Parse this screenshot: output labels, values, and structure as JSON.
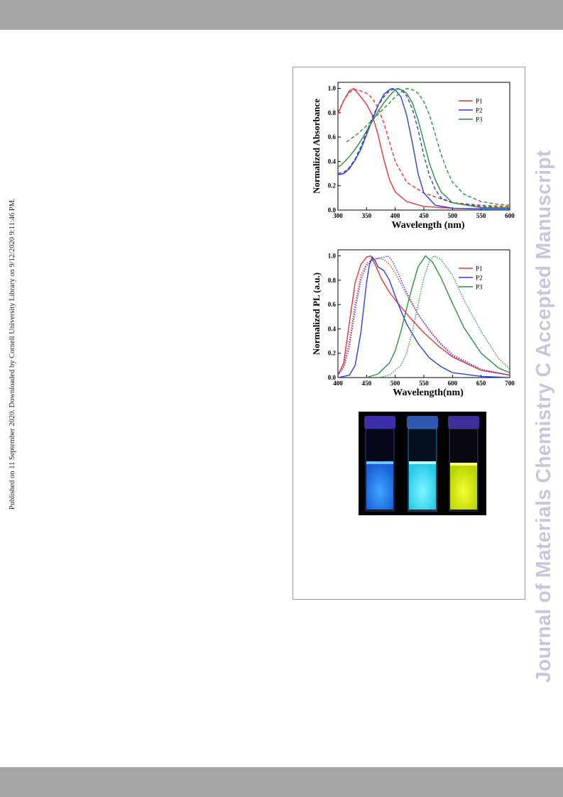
{
  "side_note": "Published on 11 September 2020. Downloaded by Cornell University Library on 9/12/2020 9:11:46 PM.",
  "watermark": "Journal of Materials Chemistry C Accepted Manuscript",
  "colors": {
    "P1": "#e8303a",
    "P2": "#2b3ee0",
    "P3": "#27923a",
    "bar": "#a6a6a6",
    "watermark": "#c7c7dc"
  },
  "chart_data": [
    {
      "type": "line",
      "xlabel": "Wavelength (nm)",
      "ylabel": "Normalized Absorbance",
      "xlim": [
        300,
        600
      ],
      "ylim": [
        0,
        1.05
      ],
      "xticks": [
        "300",
        "350",
        "400",
        "450",
        "500",
        "550",
        "600"
      ],
      "yticks": [
        "0.0",
        "0.2",
        "0.4",
        "0.6",
        "0.8",
        "1.0"
      ],
      "legend": {
        "placement": "top-right",
        "entries": [
          "P1",
          "P2",
          "P3"
        ]
      },
      "series": [
        {
          "name": "P1",
          "style": "solid",
          "color": "#e8303a",
          "x": [
            300,
            310,
            320,
            328,
            340,
            350,
            360,
            370,
            380,
            390,
            400,
            420,
            450,
            500,
            550,
            600
          ],
          "y": [
            0.79,
            0.9,
            0.98,
            1.0,
            0.93,
            0.87,
            0.78,
            0.62,
            0.42,
            0.25,
            0.15,
            0.07,
            0.03,
            0.015,
            0.01,
            0.01
          ]
        },
        {
          "name": "P1",
          "style": "dashed",
          "color": "#e8303a",
          "x": [
            300,
            310,
            320,
            330,
            340,
            350,
            360,
            370,
            380,
            390,
            400,
            420,
            450,
            500,
            550,
            600
          ],
          "y": [
            0.8,
            0.9,
            0.97,
            0.99,
            0.98,
            0.96,
            0.92,
            0.84,
            0.72,
            0.56,
            0.4,
            0.23,
            0.14,
            0.06,
            0.04,
            0.03
          ]
        },
        {
          "name": "P2",
          "style": "solid",
          "color": "#2b3ee0",
          "x": [
            300,
            310,
            320,
            330,
            340,
            350,
            360,
            370,
            380,
            390,
            395,
            400,
            410,
            420,
            430,
            440,
            450,
            470,
            500,
            550,
            600
          ],
          "y": [
            0.29,
            0.3,
            0.34,
            0.41,
            0.5,
            0.62,
            0.74,
            0.86,
            0.95,
            0.99,
            1.0,
            0.99,
            0.93,
            0.78,
            0.55,
            0.3,
            0.14,
            0.04,
            0.015,
            0.01,
            0.01
          ]
        },
        {
          "name": "P2",
          "style": "dashed",
          "color": "#2b3ee0",
          "x": [
            300,
            310,
            320,
            330,
            340,
            350,
            360,
            370,
            380,
            390,
            400,
            410,
            420,
            430,
            440,
            450,
            460,
            470,
            480,
            500,
            550,
            600
          ],
          "y": [
            0.3,
            0.31,
            0.35,
            0.42,
            0.52,
            0.64,
            0.76,
            0.86,
            0.93,
            0.98,
            1.0,
            0.99,
            0.94,
            0.83,
            0.66,
            0.45,
            0.28,
            0.17,
            0.1,
            0.06,
            0.03,
            0.02
          ]
        },
        {
          "name": "P3",
          "style": "solid",
          "color": "#27923a",
          "x": [
            300,
            310,
            320,
            330,
            340,
            350,
            360,
            370,
            380,
            390,
            400,
            405,
            410,
            420,
            430,
            440,
            450,
            460,
            470,
            480,
            500,
            550,
            600
          ],
          "y": [
            0.35,
            0.39,
            0.44,
            0.5,
            0.57,
            0.65,
            0.73,
            0.81,
            0.88,
            0.94,
            0.99,
            1.0,
            0.99,
            0.96,
            0.88,
            0.74,
            0.56,
            0.38,
            0.25,
            0.15,
            0.06,
            0.02,
            0.02
          ]
        },
        {
          "name": "P3",
          "style": "dashed",
          "color": "#27923a",
          "x": [
            315,
            330,
            345,
            360,
            375,
            390,
            400,
            410,
            420,
            430,
            440,
            450,
            460,
            470,
            480,
            490,
            500,
            520,
            550,
            575,
            600
          ],
          "y": [
            0.56,
            0.61,
            0.67,
            0.74,
            0.81,
            0.88,
            0.93,
            0.97,
            1.0,
            0.99,
            0.96,
            0.89,
            0.78,
            0.62,
            0.46,
            0.33,
            0.23,
            0.13,
            0.07,
            0.05,
            0.04
          ]
        }
      ]
    },
    {
      "type": "line",
      "xlabel": "Wavelength(nm)",
      "ylabel": "Normalized PL (a.u.)",
      "xlim": [
        400,
        700
      ],
      "ylim": [
        0,
        1.05
      ],
      "xticks": [
        "400",
        "450",
        "500",
        "550",
        "600",
        "650",
        "700"
      ],
      "yticks": [
        "0.0",
        "0.2",
        "0.4",
        "0.6",
        "0.8",
        "1.0"
      ],
      "legend": {
        "placement": "top-right",
        "entries": [
          "P1",
          "P2",
          "P3"
        ]
      },
      "series": [
        {
          "name": "P1",
          "style": "solid",
          "color": "#e8303a",
          "x": [
            400,
            410,
            420,
            430,
            440,
            450,
            457,
            465,
            475,
            490,
            510,
            530,
            550,
            575,
            600,
            650,
            700
          ],
          "y": [
            0.02,
            0.12,
            0.45,
            0.78,
            0.93,
            0.99,
            1.0,
            0.93,
            0.82,
            0.7,
            0.58,
            0.47,
            0.37,
            0.26,
            0.17,
            0.06,
            0.02
          ]
        },
        {
          "name": "P1",
          "style": "dotted",
          "color": "#e8303a",
          "x": [
            400,
            410,
            420,
            430,
            440,
            450,
            460,
            470,
            480,
            490,
            500,
            510,
            520,
            540,
            560,
            580,
            600,
            650,
            700
          ],
          "y": [
            0.02,
            0.1,
            0.3,
            0.6,
            0.84,
            0.94,
            0.97,
            0.98,
            0.97,
            0.93,
            0.86,
            0.77,
            0.68,
            0.52,
            0.39,
            0.28,
            0.19,
            0.07,
            0.02
          ]
        },
        {
          "name": "P2",
          "style": "solid",
          "color": "#2b3ee0",
          "x": [
            400,
            420,
            430,
            440,
            450,
            455,
            460,
            465,
            470,
            480,
            490,
            500,
            510,
            520,
            540,
            560,
            580,
            600,
            650,
            700
          ],
          "y": [
            0.0,
            0.02,
            0.1,
            0.37,
            0.78,
            0.93,
            0.99,
            0.96,
            0.91,
            0.88,
            0.8,
            0.67,
            0.55,
            0.44,
            0.28,
            0.16,
            0.09,
            0.04,
            0.01,
            0.0
          ]
        },
        {
          "name": "P2",
          "style": "dotted",
          "color": "#2b3ee0",
          "x": [
            400,
            410,
            420,
            430,
            440,
            450,
            460,
            470,
            480,
            487,
            495,
            505,
            520,
            540,
            560,
            580,
            600,
            650,
            700
          ],
          "y": [
            0.02,
            0.08,
            0.25,
            0.55,
            0.8,
            0.92,
            0.96,
            0.98,
            0.99,
            1.0,
            0.96,
            0.86,
            0.7,
            0.52,
            0.38,
            0.27,
            0.18,
            0.06,
            0.02
          ]
        },
        {
          "name": "P3",
          "style": "solid",
          "color": "#27923a",
          "x": [
            450,
            470,
            490,
            500,
            510,
            520,
            530,
            540,
            553,
            565,
            580,
            600,
            620,
            650,
            680,
            700
          ],
          "y": [
            0.0,
            0.03,
            0.12,
            0.22,
            0.38,
            0.57,
            0.75,
            0.91,
            1.0,
            0.95,
            0.82,
            0.61,
            0.41,
            0.2,
            0.08,
            0.04
          ]
        },
        {
          "name": "P3",
          "style": "dotted",
          "color": "#27923a",
          "x": [
            470,
            490,
            510,
            520,
            530,
            540,
            550,
            560,
            568,
            580,
            600,
            620,
            650,
            680,
            700
          ],
          "y": [
            0.0,
            0.02,
            0.1,
            0.2,
            0.38,
            0.6,
            0.82,
            0.96,
            1.0,
            0.97,
            0.84,
            0.64,
            0.38,
            0.16,
            0.07
          ]
        }
      ]
    }
  ]
}
